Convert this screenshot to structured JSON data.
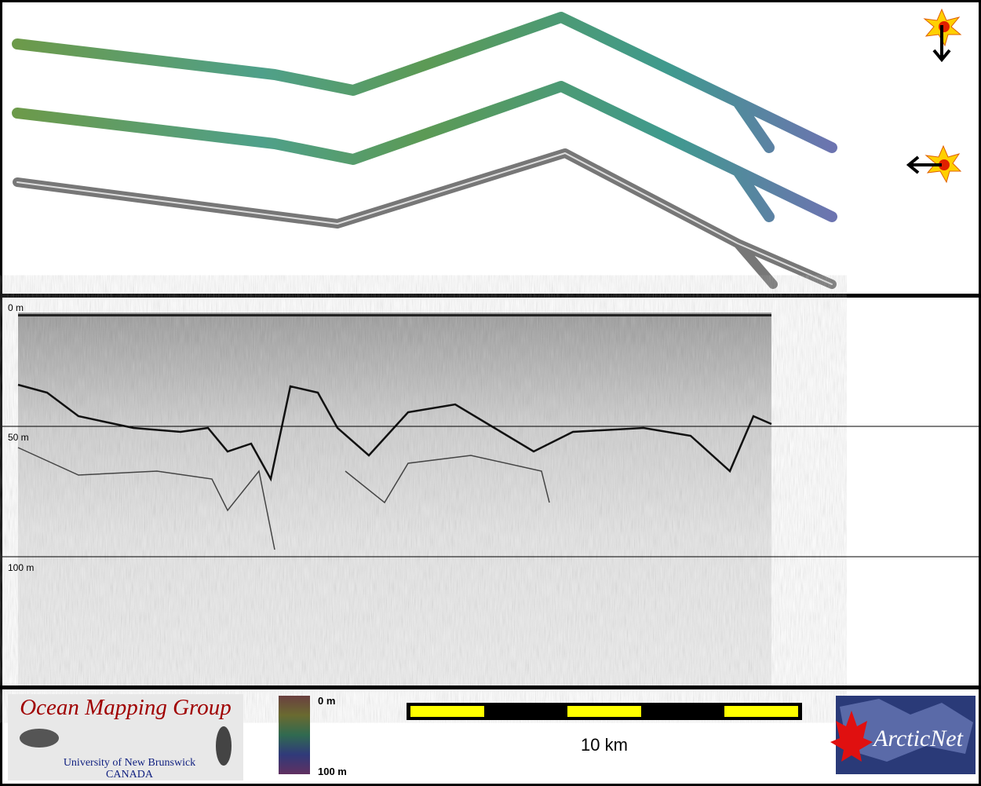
{
  "profile": {
    "depth_labels": [
      "0 m",
      "50 m",
      "100 m"
    ]
  },
  "colorbar": {
    "top": "0 m",
    "bottom": "100 m"
  },
  "scale_bar": {
    "label": "10 km"
  },
  "logos": {
    "omg": {
      "title": "Ocean Mapping Group",
      "subtitle": "University of New Brunswick",
      "country": "CANADA"
    },
    "arcticnet": "ArcticNet"
  }
}
